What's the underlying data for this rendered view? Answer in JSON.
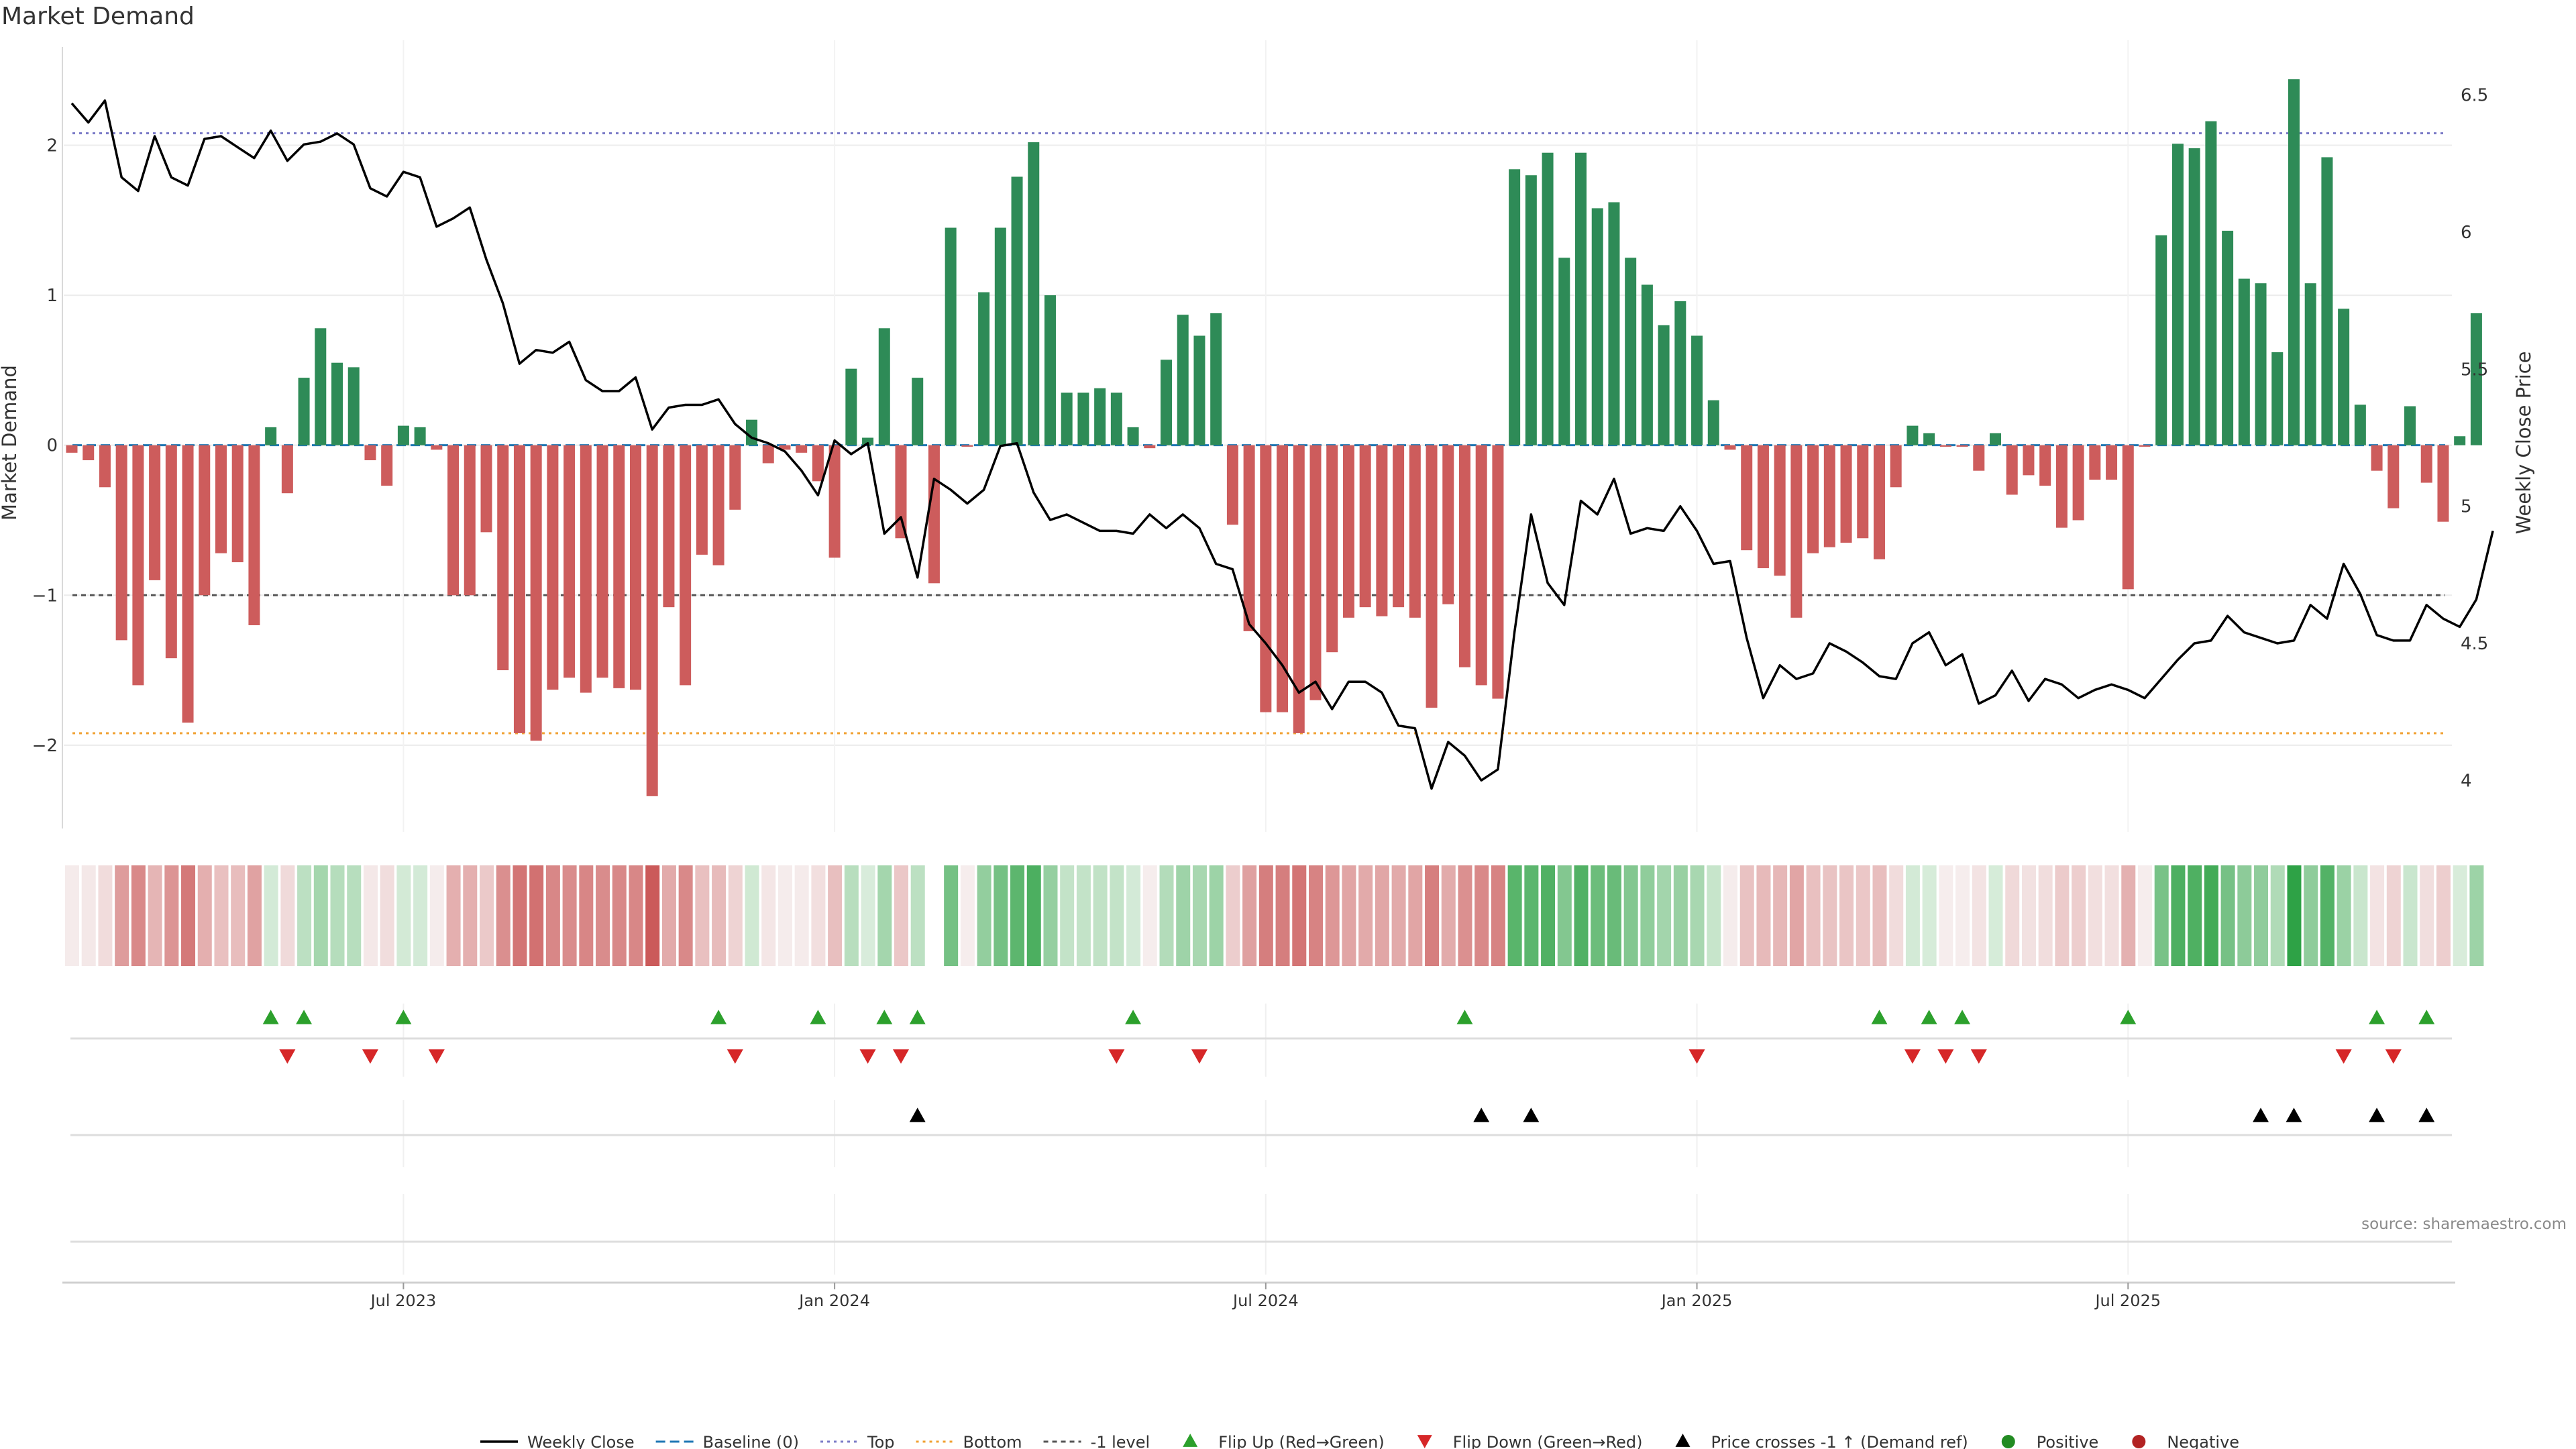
{
  "chart_data": {
    "type": "bar",
    "title": "Market Demand",
    "ylabel_left": "Market Demand",
    "ylabel_right": "Weekly Close Price",
    "ylim_left": [
      -2.6,
      2.7
    ],
    "ylim_right": [
      3.8,
      6.7
    ],
    "yticks_left": [
      {
        "v": 2,
        "label": "2"
      },
      {
        "v": 1,
        "label": "1"
      },
      {
        "v": 0,
        "label": "0"
      },
      {
        "v": -1,
        "label": "−1"
      },
      {
        "v": -2,
        "label": "−2"
      }
    ],
    "yticks_right": [
      {
        "v": 6.5,
        "label": "6.5"
      },
      {
        "v": 6,
        "label": "6"
      },
      {
        "v": 5.5,
        "label": "5.5"
      },
      {
        "v": 5,
        "label": "5"
      },
      {
        "v": 4.5,
        "label": "4.5"
      },
      {
        "v": 4,
        "label": "4"
      }
    ],
    "x_ticks": [
      {
        "i": 20,
        "label": "Jul 2023"
      },
      {
        "i": 46,
        "label": "Jan 2024"
      },
      {
        "i": 72,
        "label": "Jul 2024"
      },
      {
        "i": 98,
        "label": "Jan 2025"
      },
      {
        "i": 124,
        "label": "Jul 2025"
      }
    ],
    "levels": {
      "top": 2.08,
      "bottom": -1.92,
      "minus_one": -1,
      "baseline": 0
    },
    "demand": [
      -0.05,
      -0.1,
      -0.28,
      -1.3,
      -1.6,
      -0.9,
      -1.42,
      -1.85,
      -1.0,
      -0.72,
      -0.78,
      -1.2,
      0.12,
      -0.32,
      0.45,
      0.78,
      0.55,
      0.52,
      -0.1,
      -0.27,
      0.13,
      0.12,
      -0.03,
      -1.0,
      -1.0,
      -0.58,
      -1.5,
      -1.92,
      -1.97,
      -1.63,
      -1.55,
      -1.65,
      -1.55,
      -1.62,
      -1.63,
      -2.34,
      -1.08,
      -1.6,
      -0.73,
      -0.8,
      -0.43,
      0.17,
      -0.12,
      -0.03,
      -0.05,
      -0.24,
      -0.75,
      0.51,
      0.05,
      0.78,
      -0.62,
      0.45,
      -0.92,
      1.45,
      -0.01,
      1.02,
      1.45,
      1.79,
      2.02,
      1.0,
      0.35,
      0.35,
      0.38,
      0.35,
      0.12,
      -0.02,
      0.57,
      0.87,
      0.73,
      0.88,
      -0.53,
      -1.24,
      -1.78,
      -1.78,
      -1.92,
      -1.7,
      -1.38,
      -1.15,
      -1.08,
      -1.14,
      -1.08,
      -1.15,
      -1.75,
      -1.06,
      -1.48,
      -1.6,
      -1.69,
      1.84,
      1.8,
      1.95,
      1.25,
      1.95,
      1.58,
      1.62,
      1.25,
      1.07,
      0.8,
      0.96,
      0.73,
      0.3,
      -0.03,
      -0.7,
      -0.82,
      -0.87,
      -1.15,
      -0.72,
      -0.68,
      -0.65,
      -0.62,
      -0.76,
      -0.28,
      0.13,
      0.08,
      -0.01,
      -0.01,
      -0.17,
      0.08,
      -0.33,
      -0.2,
      -0.27,
      -0.55,
      -0.5,
      -0.23,
      -0.23,
      -0.96,
      -0.01,
      1.4,
      2.01,
      1.98,
      2.16,
      1.43,
      1.11,
      1.08,
      0.62,
      2.44,
      1.08,
      1.92,
      0.91,
      0.27,
      -0.17,
      -0.42,
      0.26,
      -0.25,
      -0.51,
      0.06,
      0.88
    ],
    "close": [
      6.47,
      6.4,
      6.48,
      6.2,
      6.15,
      6.35,
      6.2,
      6.17,
      6.34,
      6.35,
      6.31,
      6.27,
      6.37,
      6.26,
      6.32,
      6.33,
      6.36,
      6.32,
      6.16,
      6.13,
      6.22,
      6.2,
      6.02,
      6.05,
      6.09,
      5.9,
      5.74,
      5.52,
      5.57,
      5.56,
      5.6,
      5.46,
      5.42,
      5.42,
      5.47,
      5.28,
      5.36,
      5.37,
      5.37,
      5.39,
      5.3,
      5.25,
      5.23,
      5.2,
      5.13,
      5.04,
      5.24,
      5.19,
      5.23,
      4.9,
      4.96,
      4.74,
      5.1,
      5.06,
      5.01,
      5.06,
      5.22,
      5.23,
      5.05,
      4.95,
      4.97,
      4.94,
      4.91,
      4.91,
      4.9,
      4.97,
      4.92,
      4.97,
      4.92,
      4.79,
      4.77,
      4.57,
      4.5,
      4.42,
      4.32,
      4.36,
      4.26,
      4.36,
      4.36,
      4.32,
      4.2,
      4.19,
      3.97,
      4.14,
      4.09,
      4.0,
      4.04,
      4.54,
      4.97,
      4.72,
      4.64,
      5.02,
      4.97,
      5.1,
      4.9,
      4.92,
      4.91,
      5.0,
      4.91,
      4.79,
      4.8,
      4.52,
      4.3,
      4.42,
      4.37,
      4.39,
      4.5,
      4.47,
      4.43,
      4.38,
      4.37,
      4.5,
      4.54,
      4.42,
      4.46,
      4.28,
      4.31,
      4.4,
      4.29,
      4.37,
      4.35,
      4.3,
      4.33,
      4.35,
      4.33,
      4.3,
      4.37,
      4.44,
      4.5,
      4.51,
      4.6,
      4.54,
      4.52,
      4.5,
      4.51,
      4.64,
      4.59,
      4.79,
      4.68,
      4.53,
      4.51,
      4.51,
      4.64,
      4.59,
      4.56,
      4.66,
      4.91
    ],
    "flip_up": [
      12,
      14,
      20,
      39,
      45,
      49,
      51,
      64,
      84,
      109,
      112,
      114,
      124,
      139,
      142
    ],
    "flip_down": [
      13,
      18,
      22,
      40,
      48,
      50,
      63,
      68,
      98,
      111,
      113,
      115,
      137,
      140
    ],
    "price_cross_up": [
      51,
      85,
      88,
      132,
      134,
      139,
      142
    ],
    "missing_heat_cells": [
      52
    ],
    "colors": {
      "positive_bar": "#2e8b57",
      "negative_bar": "#cd5c5c",
      "close_line": "#000000",
      "baseline": "#1f77b4",
      "top_line": "#7b7bc7",
      "bottom_line": "#f0a030",
      "level_line": "#555555",
      "flip_up_marker": "#2ca02c",
      "flip_down_marker": "#d62728",
      "cross_marker": "#000000",
      "positive_dot": "#228b22",
      "negative_dot": "#b22222"
    },
    "legend": [
      {
        "key": "line",
        "label": "Weekly Close"
      },
      {
        "key": "dash",
        "label": "Baseline (0)"
      },
      {
        "key": "top",
        "label": "Top"
      },
      {
        "key": "bottom",
        "label": "Bottom"
      },
      {
        "key": "level",
        "label": "-1 level"
      },
      {
        "key": "up",
        "label": "Flip Up (Red→Green)"
      },
      {
        "key": "down",
        "label": "Flip Down (Green→Red)"
      },
      {
        "key": "cross",
        "label": "Price crosses -1 ↑ (Demand ref)"
      },
      {
        "key": "pos",
        "label": "Positive"
      },
      {
        "key": "neg",
        "label": "Negative"
      }
    ]
  },
  "source_text": "source: sharemaestro.com"
}
